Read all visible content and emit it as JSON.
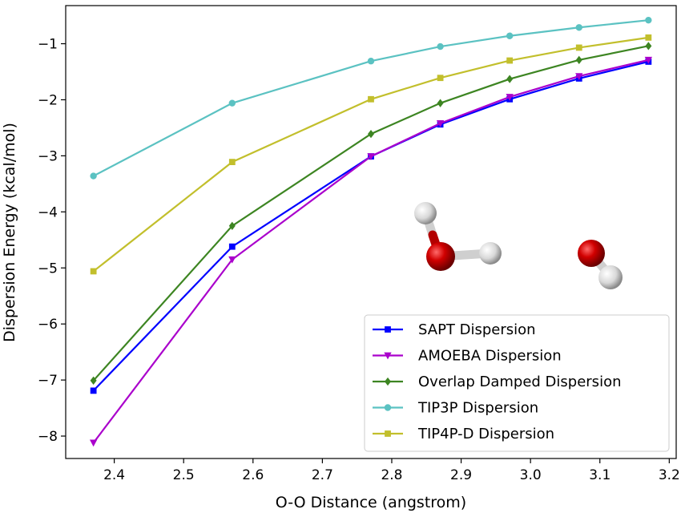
{
  "chart_data": {
    "type": "line",
    "xlabel": "O-O Distance (angstrom)",
    "ylabel": "Dispersion Energy (kcal/mol)",
    "xlim": [
      2.33,
      3.21
    ],
    "ylim": [
      -8.4,
      -0.32
    ],
    "xticks": [
      2.4,
      2.5,
      2.6,
      2.7,
      2.8,
      2.9,
      3.0,
      3.1,
      3.2
    ],
    "xtick_labels": [
      "2.4",
      "2.5",
      "2.6",
      "2.7",
      "2.8",
      "2.9",
      "3.0",
      "3.1",
      "3.2"
    ],
    "yticks": [
      -8,
      -7,
      -6,
      -5,
      -4,
      -3,
      -2,
      -1
    ],
    "ytick_labels": [
      "−8",
      "−7",
      "−6",
      "−5",
      "−4",
      "−3",
      "−2",
      "−1"
    ],
    "grid": false,
    "legend_position": "lower-right",
    "x": [
      2.37,
      2.57,
      2.77,
      2.87,
      2.97,
      3.07,
      3.17
    ],
    "series": [
      {
        "name": "SAPT Dispersion",
        "color": "#0000ff",
        "marker": "square",
        "values": [
          -7.19,
          -4.62,
          -3.01,
          -2.44,
          -1.99,
          -1.62,
          -1.32
        ]
      },
      {
        "name": "AMOEBA Dispersion",
        "color": "#aa00cc",
        "marker": "triangle-down",
        "values": [
          -8.12,
          -4.85,
          -3.01,
          -2.42,
          -1.95,
          -1.58,
          -1.29
        ]
      },
      {
        "name": "Overlap Damped Dispersion",
        "color": "#3d8522",
        "marker": "diamond",
        "values": [
          -7.01,
          -4.25,
          -2.61,
          -2.06,
          -1.63,
          -1.29,
          -1.04
        ]
      },
      {
        "name": "TIP3P Dispersion",
        "color": "#5bc2c2",
        "marker": "circle",
        "values": [
          -3.36,
          -2.06,
          -1.31,
          -1.05,
          -0.86,
          -0.71,
          -0.58
        ]
      },
      {
        "name": "TIP4P-D Dispersion",
        "color": "#c2bf2c",
        "marker": "square",
        "values": [
          -5.06,
          -3.11,
          -1.99,
          -1.61,
          -1.3,
          -1.07,
          -0.89
        ]
      }
    ]
  },
  "inset_image": {
    "description_icon": "water-dimer-molecule-icon",
    "oxygen_color": "#cc0000",
    "hydrogen_color": "#e8e8e8"
  }
}
